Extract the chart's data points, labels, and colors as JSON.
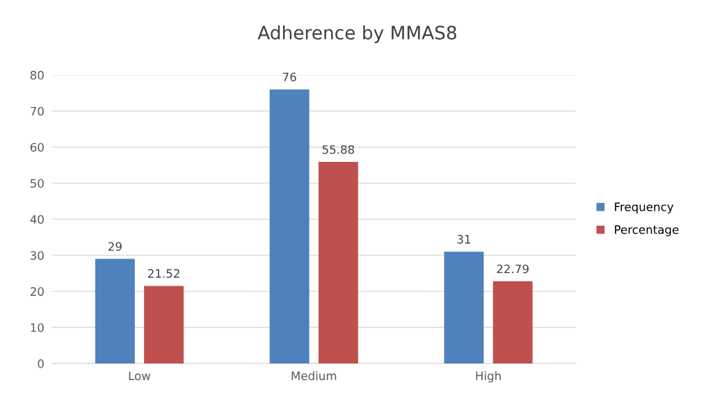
{
  "chart_data": {
    "type": "bar",
    "title": "Adherence by MMAS8",
    "categories": [
      "Low",
      "Medium",
      "High"
    ],
    "series": [
      {
        "name": "Frequency",
        "color": "#4f81bd",
        "values": [
          29,
          76,
          31
        ]
      },
      {
        "name": "Percentage",
        "color": "#c0504d",
        "values": [
          21.52,
          55.88,
          22.79
        ]
      }
    ],
    "ylim": [
      0,
      80
    ],
    "yticks": [
      0,
      10,
      20,
      30,
      40,
      50,
      60,
      70,
      80
    ],
    "grid": "y",
    "legend": "right",
    "data_labels": true
  }
}
